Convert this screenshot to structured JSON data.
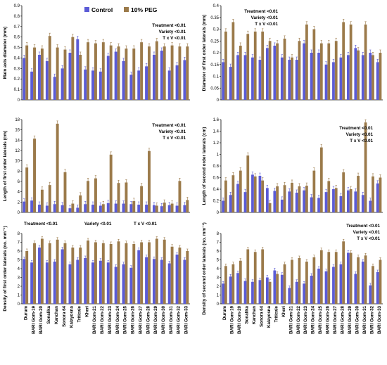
{
  "legend": {
    "control_label": "Control",
    "peg_label": "10% PEG",
    "control_color": "#5b5bd6",
    "peg_color": "#9b7a4a"
  },
  "chart_data": [
    {
      "type": "bar",
      "ylabel": "Main axis diameter (mm)",
      "ylim": [
        0,
        0.9
      ],
      "yticks": [
        0,
        0.1,
        0.2,
        0.3,
        0.4,
        0.5,
        0.6,
        0.7,
        0.8,
        0.9
      ],
      "stats": [
        "Treatment <0.01",
        "Variety <0.01",
        "T x V <0.01"
      ],
      "categories": [
        "Durum",
        "BARI Gom-19",
        "BARI Gom-20",
        "Sonalika",
        "Kanchan",
        "Sonora 64",
        "Kalayosna",
        "Triticale",
        "Kheri",
        "BARI Gom-21",
        "BARI Gom-22",
        "BARI Gom-23",
        "BARI Gom-24",
        "BARI Gom-25",
        "BARI Gom-26",
        "BARI Gom-27",
        "BARI Gom-28",
        "BARI Gom-29",
        "BARI Gom-30",
        "BARI Gom-31",
        "BARI Gom-32",
        "BARI Gom-33"
      ],
      "series": [
        {
          "name": "Control",
          "values": [
            0.4,
            0.27,
            0.43,
            0.37,
            0.22,
            0.3,
            0.45,
            0.58,
            0.29,
            0.28,
            0.27,
            0.42,
            0.46,
            0.37,
            0.24,
            0.28,
            0.32,
            0.43,
            0.47,
            0.28,
            0.33,
            0.38
          ]
        },
        {
          "name": "10% PEG",
          "values": [
            0.52,
            0.5,
            0.49,
            0.61,
            0.5,
            0.48,
            0.6,
            0.43,
            0.55,
            0.54,
            0.55,
            0.52,
            0.51,
            0.49,
            0.49,
            0.55,
            0.51,
            0.56,
            0.51,
            0.52,
            0.51,
            0.51
          ]
        }
      ]
    },
    {
      "type": "bar",
      "ylabel": "Diameter of first order laterals (mm)",
      "ylim": [
        0,
        0.4
      ],
      "yticks": [
        0,
        0.05,
        0.1,
        0.15,
        0.2,
        0.25,
        0.3,
        0.35,
        0.4
      ],
      "stats": [
        "Treatment <0.01",
        "Variety <0.01",
        "T x V <0.01"
      ],
      "categories": [
        "Durum",
        "BARI Gom-19",
        "BARI Gom-20",
        "Sonalika",
        "Kanchan",
        "Sonora 64",
        "Kalayosna",
        "Triticale",
        "Kheri",
        "BARI Gom-21",
        "BARI Gom-22",
        "BARI Gom-23",
        "BARI Gom-24",
        "BARI Gom-25",
        "BARI Gom-26",
        "BARI Gom-27",
        "BARI Gom-28",
        "BARI Gom-29",
        "BARI Gom-30",
        "BARI Gom-31",
        "BARI Gom-32",
        "BARI Gom-33"
      ],
      "series": [
        {
          "name": "Control",
          "values": [
            0.16,
            0.14,
            0.19,
            0.19,
            0.18,
            0.17,
            0.22,
            0.23,
            0.18,
            0.17,
            0.17,
            0.24,
            0.2,
            0.2,
            0.15,
            0.16,
            0.18,
            0.19,
            0.22,
            0.19,
            0.2,
            0.16
          ]
        },
        {
          "name": "10% PEG",
          "values": [
            0.29,
            0.33,
            0.23,
            0.28,
            0.29,
            0.29,
            0.25,
            0.24,
            0.26,
            0.18,
            0.25,
            0.32,
            0.3,
            0.24,
            0.24,
            0.25,
            0.33,
            0.32,
            0.21,
            0.32,
            0.19,
            0.2
          ]
        }
      ]
    },
    {
      "type": "bar",
      "ylabel": "Length of first order laterals (cm)",
      "ylim": [
        0,
        18
      ],
      "yticks": [
        0,
        2,
        4,
        6,
        8,
        10,
        12,
        14,
        16,
        18
      ],
      "stats": [
        "Treatment <0.01",
        "Variety <0.01",
        "T x V <0.01"
      ],
      "categories": [
        "Durum",
        "BARI Gom-19",
        "BARI Gom-20",
        "Sonalika",
        "Kanchan",
        "Sonora 64",
        "Kalayosna",
        "Triticale",
        "Kheri",
        "BARI Gom-21",
        "BARI Gom-22",
        "BARI Gom-23",
        "BARI Gom-24",
        "BARI Gom-25",
        "BARI Gom-26",
        "BARI Gom-27",
        "BARI Gom-28",
        "BARI Gom-29",
        "BARI Gom-30",
        "BARI Gom-31",
        "BARI Gom-32",
        "BARI Gom-33"
      ],
      "series": [
        {
          "name": "Control",
          "values": [
            2.1,
            2.3,
            1.5,
            1.3,
            1.6,
            1.4,
            0.8,
            0.9,
            1.6,
            1.5,
            1.3,
            1.8,
            1.7,
            1.7,
            1.6,
            1.5,
            1.5,
            1.4,
            1.2,
            1.4,
            1.3,
            1.4
          ]
        },
        {
          "name": "10% PEG",
          "values": [
            8.7,
            14.3,
            4.4,
            5.3,
            17.2,
            7.8,
            1.7,
            3.3,
            6.1,
            6.6,
            1.6,
            11.2,
            5.7,
            5.8,
            2.2,
            5.1,
            11.9,
            1.3,
            1.9,
            1.7,
            6.1,
            2.4
          ]
        }
      ]
    },
    {
      "type": "bar",
      "ylabel": "Length of second order laterals (cm)",
      "ylim": [
        0,
        1.6
      ],
      "yticks": [
        0,
        0.2,
        0.4,
        0.6,
        0.8,
        1,
        1.2,
        1.4,
        1.6
      ],
      "stats": [
        "Treatment <0.01",
        "Variety <0.01",
        "T x V <0.01"
      ],
      "categories": [
        "Durum",
        "BARI Gom-19",
        "BARI Gom-20",
        "Sonalika",
        "Kanchan",
        "Sonora 64",
        "Kalayosna",
        "Triticale",
        "Kheri",
        "BARI Gom-21",
        "BARI Gom-22",
        "BARI Gom-23",
        "BARI Gom-24",
        "BARI Gom-25",
        "BARI Gom-26",
        "BARI Gom-27",
        "BARI Gom-28",
        "BARI Gom-29",
        "BARI Gom-30",
        "BARI Gom-31",
        "BARI Gom-32",
        "BARI Gom-33"
      ],
      "series": [
        {
          "name": "Control",
          "values": [
            0.2,
            0.3,
            0.49,
            0.35,
            0.65,
            0.63,
            0.42,
            0.37,
            0.22,
            0.36,
            0.34,
            0.38,
            0.26,
            0.25,
            0.35,
            0.4,
            0.28,
            0.38,
            0.36,
            0.3,
            0.2,
            0.5
          ]
        },
        {
          "name": "10% PEG",
          "values": [
            0.55,
            0.64,
            0.72,
            0.98,
            0.62,
            0.55,
            0.16,
            0.45,
            0.47,
            0.51,
            0.45,
            0.46,
            0.72,
            1.12,
            0.54,
            0.42,
            0.69,
            0.4,
            0.63,
            1.55,
            0.62,
            0.6
          ]
        }
      ]
    },
    {
      "type": "bar",
      "ylabel": "Density of first order laterals (no. mm⁻¹)",
      "ylim": [
        0,
        8
      ],
      "yticks": [
        0,
        1,
        2,
        3,
        4,
        5,
        6,
        7,
        8
      ],
      "stats": [
        "Treatment <0.01",
        "Variety <0.01",
        "T x V <0.01"
      ],
      "categories": [
        "Durum",
        "BARI Gom-19",
        "BARI Gom-20",
        "Sonalika",
        "Kanchan",
        "Sonora 64",
        "Kalayosna",
        "Triticale",
        "Kheri",
        "BARI Gom-21",
        "BARI Gom-22",
        "BARI Gom-23",
        "BARI Gom-24",
        "BARI Gom-25",
        "BARI Gom-26",
        "BARI Gom-27",
        "BARI Gom-28",
        "BARI Gom-29",
        "BARI Gom-30",
        "BARI Gom-31",
        "BARI Gom-32",
        "BARI Gom-33"
      ],
      "series": [
        {
          "name": "Control",
          "values": [
            5.1,
            4.7,
            6.4,
            4.7,
            4.8,
            6.2,
            4.5,
            5.0,
            5.2,
            4.7,
            4.9,
            4.7,
            4.2,
            4.5,
            4.1,
            6.1,
            5.3,
            5.1,
            5.0,
            4.6,
            5.6,
            5.0
          ]
        },
        {
          "name": "10% PEG",
          "values": [
            6.0,
            6.9,
            7.4,
            6.9,
            7.3,
            6.9,
            6.4,
            6.4,
            7.2,
            7.0,
            6.9,
            6.8,
            7.1,
            6.9,
            6.8,
            7.0,
            7.0,
            7.4,
            7.3,
            6.5,
            6.4,
            6.0
          ]
        }
      ]
    },
    {
      "type": "bar",
      "ylabel": "Density of second order laterals (no. mm⁻¹)",
      "ylim": [
        0,
        8
      ],
      "yticks": [
        0,
        1,
        2,
        3,
        4,
        5,
        6,
        7,
        8
      ],
      "stats": [
        "Treatment <0.01",
        "Variety <0.01",
        "T x V <0.01"
      ],
      "categories": [
        "Durum",
        "BARI Gom-19",
        "BARI Gom-20",
        "Sonalika",
        "Kanchan",
        "Sonora 64",
        "Kalayosna",
        "Triticale",
        "Kheri",
        "BARI Gom-21",
        "BARI Gom-22",
        "BARI Gom-23",
        "BARI Gom-24",
        "BARI Gom-25",
        "BARI Gom-26",
        "BARI Gom-27",
        "BARI Gom-28",
        "BARI Gom-29",
        "BARI Gom-30",
        "BARI Gom-31",
        "BARI Gom-32",
        "BARI Gom-33"
      ],
      "series": [
        {
          "name": "Control",
          "values": [
            2.3,
            3.1,
            3.5,
            2.6,
            2.5,
            2.7,
            3.0,
            3.8,
            3.3,
            1.8,
            2.5,
            2.3,
            3.2,
            4.0,
            3.7,
            4.2,
            4.5,
            5.8,
            3.4,
            4.8,
            2.1,
            3.6
          ]
        },
        {
          "name": "10% PEG",
          "values": [
            4.3,
            4.5,
            4.9,
            6.2,
            5.9,
            6.2,
            2.5,
            3.4,
            4.5,
            5.0,
            5.2,
            4.8,
            5.3,
            6.1,
            5.9,
            5.9,
            7.1,
            5.8,
            5.3,
            5.5,
            4.3,
            5.0
          ]
        }
      ]
    }
  ]
}
